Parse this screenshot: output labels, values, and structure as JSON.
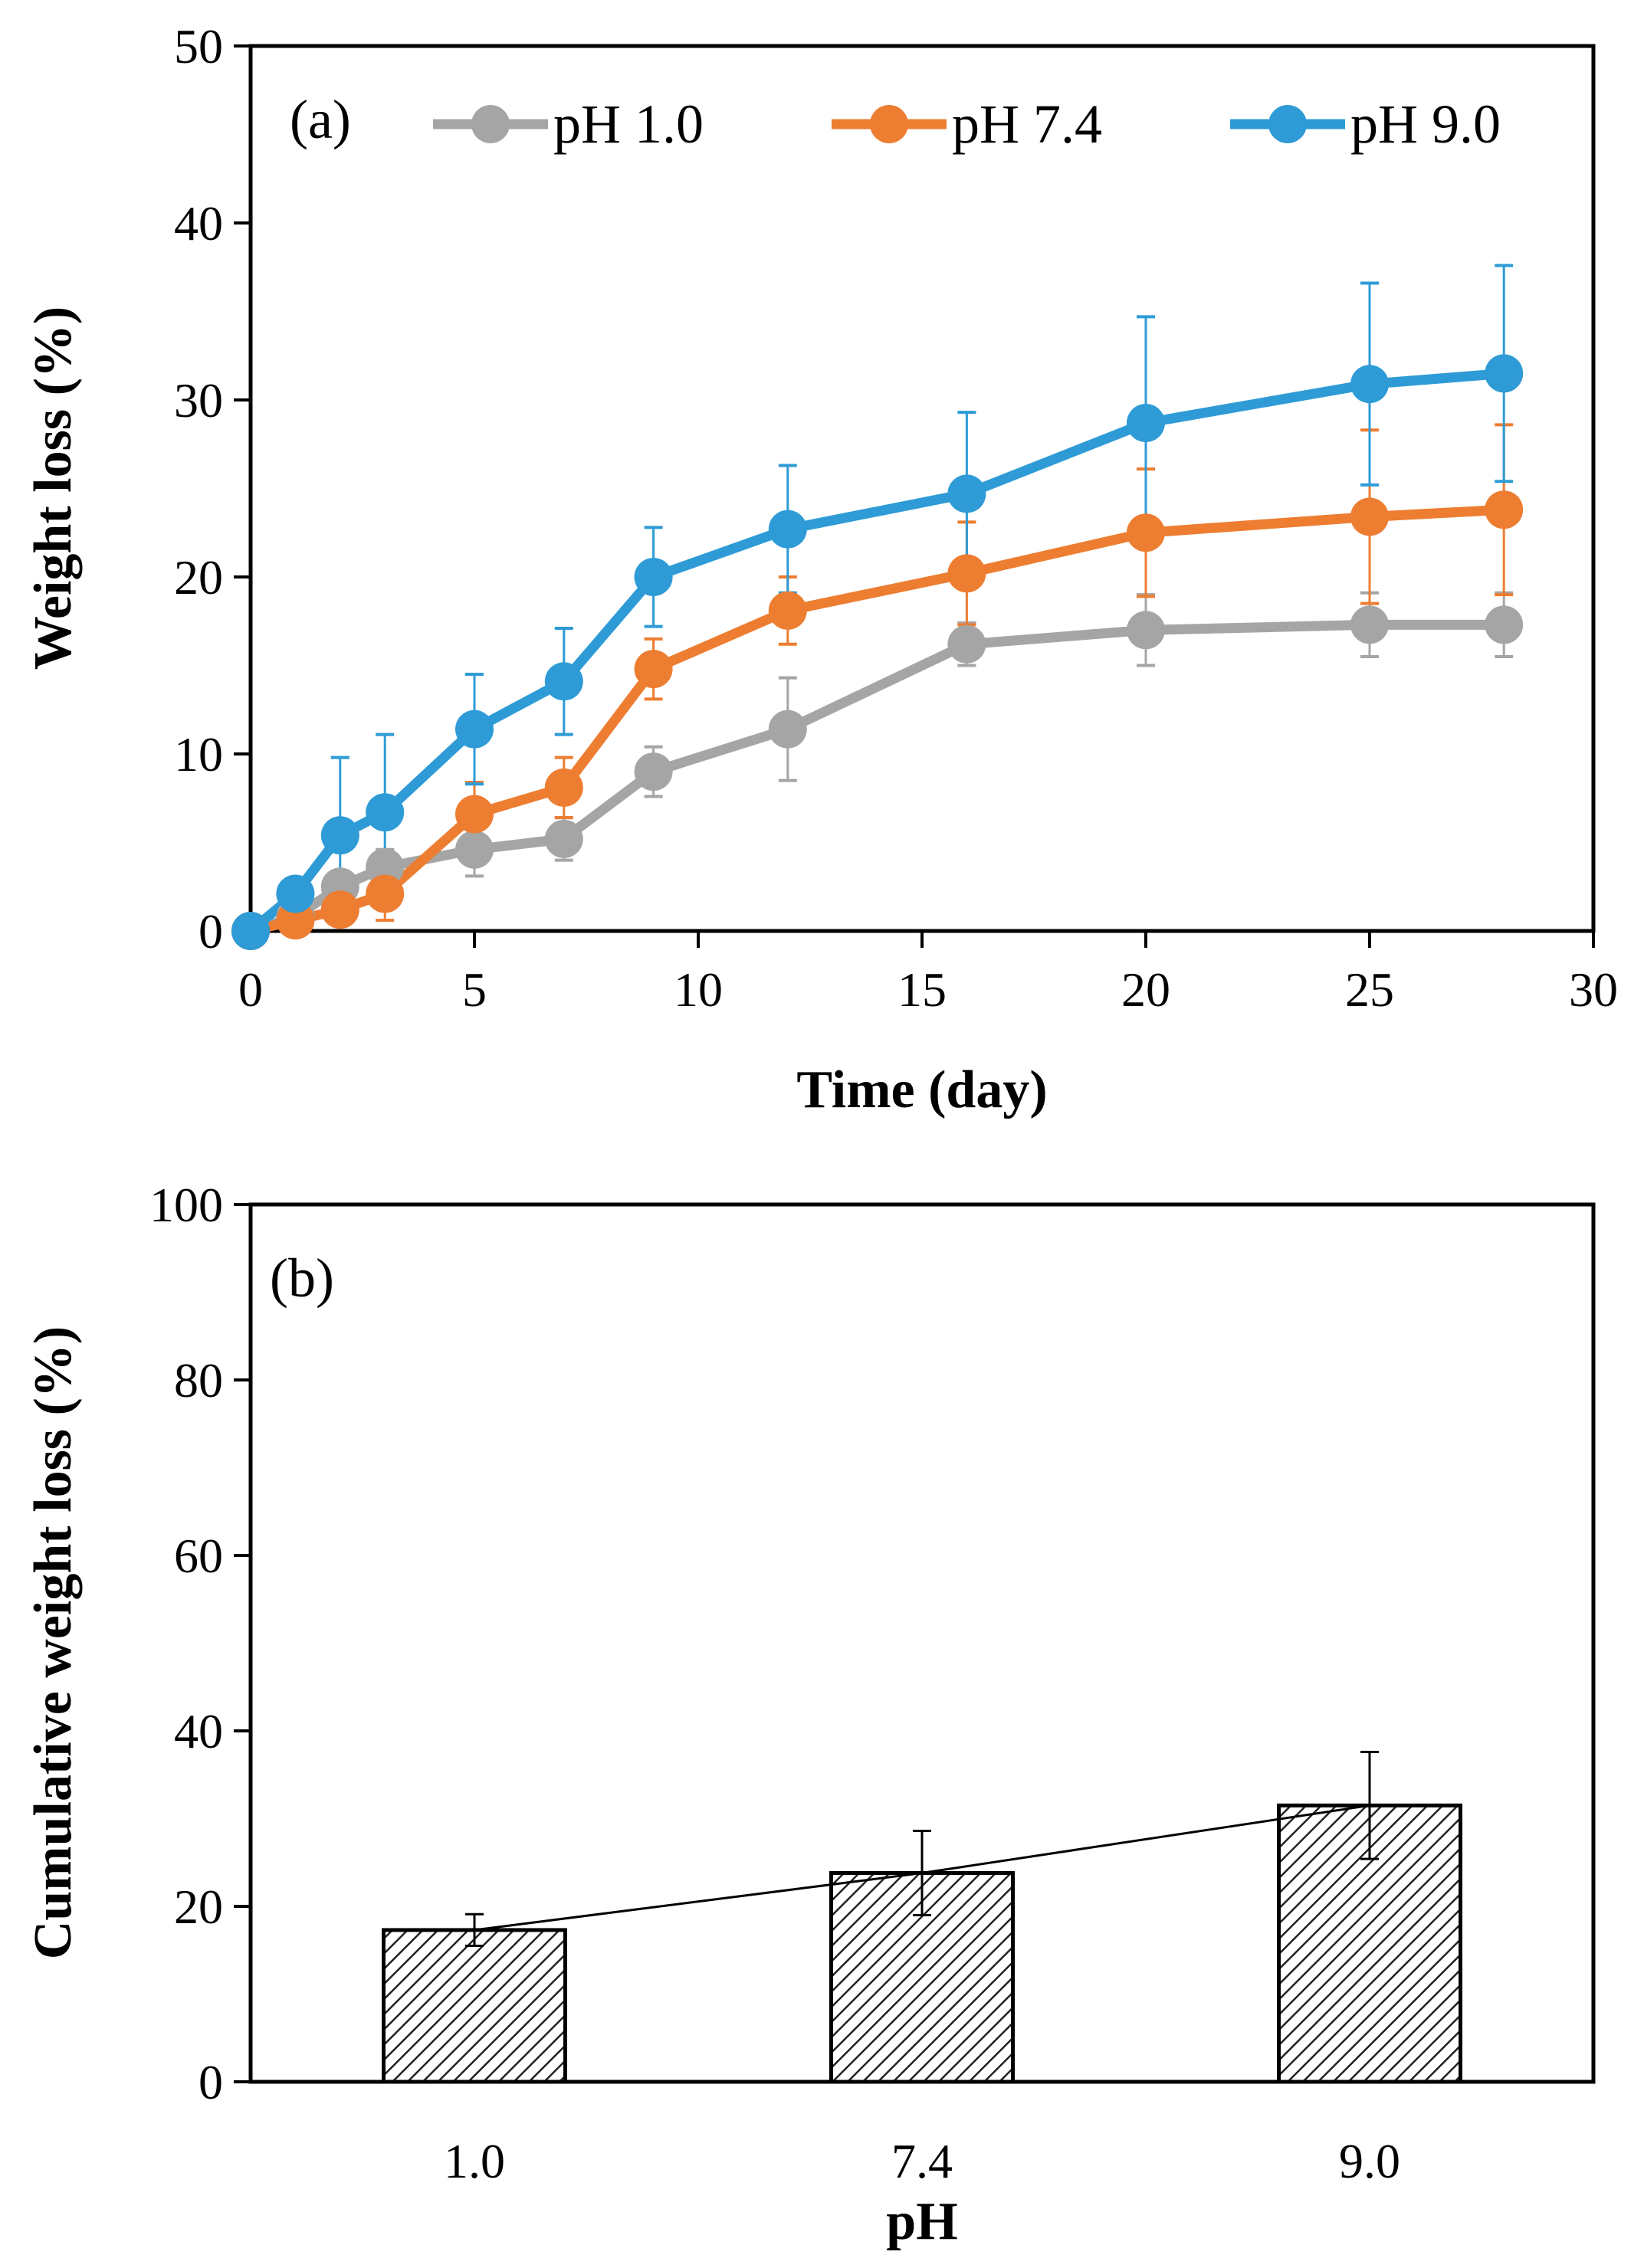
{
  "chart_data": [
    {
      "type": "line",
      "panel_label": "(a)",
      "xlabel": "Time (day)",
      "ylabel": "Weight loss (%)",
      "xlim": [
        0,
        30
      ],
      "ylim": [
        0,
        50
      ],
      "xticks": [
        "0",
        "5",
        "10",
        "15",
        "20",
        "25",
        "30"
      ],
      "yticks": [
        "0",
        "10",
        "20",
        "30",
        "40",
        "50"
      ],
      "legend_position": "top",
      "series": [
        {
          "name": "pH 1.0",
          "color": "#a5a5a5",
          "x": [
            0,
            1,
            2,
            3,
            5,
            7,
            9,
            12,
            16,
            20,
            25,
            28
          ],
          "y": [
            0,
            0.8,
            2.5,
            3.6,
            4.6,
            5.2,
            9.0,
            11.4,
            16.2,
            17.0,
            17.3,
            17.3
          ],
          "err": [
            0,
            0.4,
            0.8,
            1.0,
            1.5,
            1.2,
            1.4,
            2.9,
            1.2,
            2.0,
            1.8,
            1.8
          ]
        },
        {
          "name": "pH 7.4",
          "color": "#ed7d31",
          "x": [
            0,
            1,
            2,
            3,
            5,
            7,
            9,
            12,
            16,
            20,
            25,
            28
          ],
          "y": [
            0,
            0.6,
            1.2,
            2.1,
            6.6,
            8.1,
            14.8,
            18.1,
            20.2,
            22.5,
            23.4,
            23.8
          ],
          "err": [
            0,
            0.3,
            0.6,
            1.5,
            1.8,
            1.7,
            1.7,
            1.9,
            2.9,
            3.6,
            4.9,
            4.8
          ]
        },
        {
          "name": "pH 9.0",
          "color": "#2e9bd6",
          "x": [
            0,
            1,
            2,
            3,
            5,
            7,
            9,
            12,
            16,
            20,
            25,
            28
          ],
          "y": [
            0,
            2.1,
            5.4,
            6.7,
            11.4,
            14.1,
            20.0,
            22.7,
            24.7,
            28.7,
            30.9,
            31.5
          ],
          "err": [
            0,
            0.6,
            4.4,
            4.4,
            3.1,
            3.0,
            2.8,
            3.6,
            4.6,
            6.0,
            5.7,
            6.1
          ]
        }
      ]
    },
    {
      "type": "bar",
      "panel_label": "(b)",
      "xlabel": "pH",
      "ylabel": "Cumulative weight loss (%)",
      "ylim": [
        0,
        100
      ],
      "yticks": [
        "0",
        "20",
        "40",
        "60",
        "80",
        "100"
      ],
      "categories": [
        "1.0",
        "7.4",
        "9.0"
      ],
      "values": [
        17.3,
        23.8,
        31.5
      ],
      "err": [
        1.8,
        4.8,
        6.1
      ],
      "trendline": true,
      "fill": "hatched"
    }
  ]
}
